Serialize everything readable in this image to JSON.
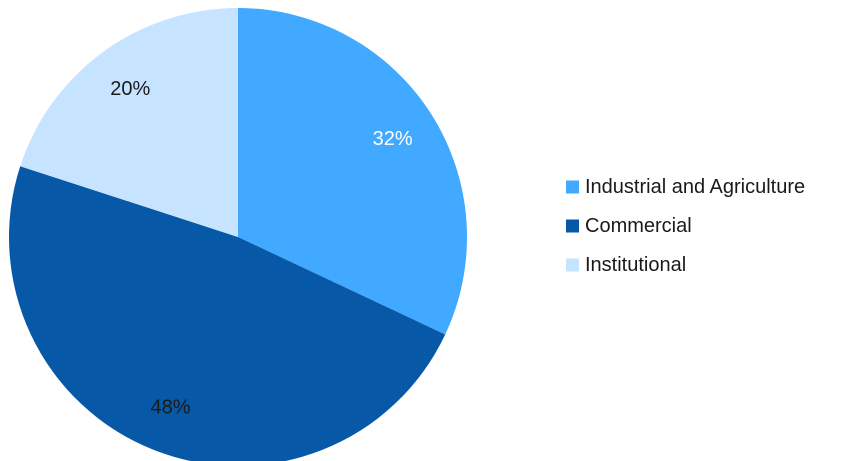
{
  "chart_data": {
    "type": "pie",
    "title": "",
    "categories": [
      "Industrial and Agriculture",
      "Commercial",
      "Institutional"
    ],
    "values": [
      32,
      48,
      20
    ],
    "value_labels": [
      "32%",
      "48%",
      "20%"
    ],
    "colors": [
      "#41a9ff",
      "#0759a8",
      "#c6e3ff"
    ],
    "label_colors": [
      "#ffffff",
      "#1a1a1a",
      "#1a1a1a"
    ],
    "start_angle_deg": 0,
    "direction": "clockwise",
    "legend": {
      "position": "right",
      "entries": [
        "Industrial and Agriculture",
        "Commercial",
        "Institutional"
      ]
    }
  }
}
